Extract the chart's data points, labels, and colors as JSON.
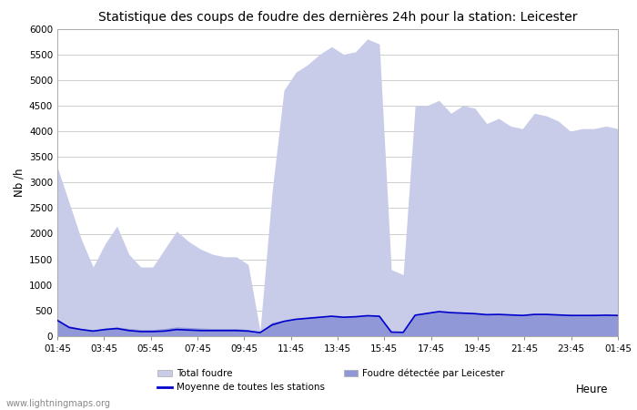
{
  "title": "Statistique des coups de foudre des dernières 24h pour la station: Leicester",
  "xlabel": "Heure",
  "ylabel": "Nb /h",
  "ylim": [
    0,
    6000
  ],
  "yticks": [
    0,
    500,
    1000,
    1500,
    2000,
    2500,
    3000,
    3500,
    4000,
    4500,
    5000,
    5500,
    6000
  ],
  "xtick_labels": [
    "01:45",
    "03:45",
    "05:45",
    "07:45",
    "09:45",
    "11:45",
    "13:45",
    "15:45",
    "17:45",
    "19:45",
    "21:45",
    "23:45",
    "01:45"
  ],
  "watermark": "www.lightningmaps.org",
  "total_foudre_color": "#c8cce8",
  "leicester_color": "#9098d8",
  "moyenne_color": "#0000cc",
  "background_color": "#ffffff",
  "grid_color": "#bbbbbb",
  "total_foudre": [
    3300,
    2600,
    1900,
    1350,
    1800,
    2150,
    1600,
    1350,
    1350,
    1700,
    2050,
    1850,
    1700,
    1600,
    1550,
    1550,
    1400,
    100,
    2800,
    4800,
    5150,
    5300,
    5500,
    5650,
    5500,
    5550,
    5800,
    5700,
    1300,
    1200,
    4500,
    4500,
    4600,
    4350,
    4500,
    4450,
    4150,
    4250,
    4100,
    4050,
    4350,
    4300,
    4200,
    4000,
    4050,
    4050,
    4100,
    4050
  ],
  "leicester_foudre": [
    300,
    200,
    150,
    120,
    160,
    180,
    150,
    130,
    130,
    150,
    180,
    170,
    160,
    150,
    150,
    150,
    130,
    80,
    270,
    310,
    340,
    360,
    380,
    390,
    380,
    390,
    410,
    400,
    100,
    90,
    430,
    460,
    490,
    470,
    460,
    450,
    430,
    430,
    420,
    410,
    430,
    430,
    420,
    410,
    410,
    410,
    415,
    410
  ],
  "moyenne_stations": [
    310,
    170,
    130,
    100,
    130,
    150,
    110,
    90,
    90,
    100,
    130,
    120,
    110,
    110,
    110,
    110,
    100,
    70,
    220,
    290,
    330,
    350,
    370,
    390,
    370,
    380,
    400,
    390,
    80,
    75,
    410,
    445,
    480,
    460,
    450,
    440,
    420,
    425,
    415,
    405,
    425,
    425,
    415,
    405,
    405,
    405,
    410,
    405
  ]
}
